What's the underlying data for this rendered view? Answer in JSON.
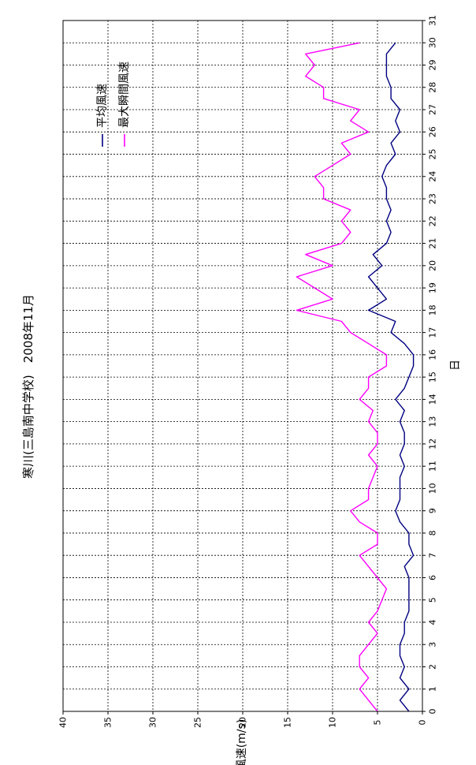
{
  "chart_data": {
    "type": "line",
    "title": "寒川(三島南中学校)　2008年11月",
    "xlabel": "日",
    "ylabel": "風速(m/s)",
    "xlim": [
      0,
      31
    ],
    "ylim": [
      0,
      40
    ],
    "x_ticks": [
      0,
      1,
      2,
      3,
      4,
      5,
      6,
      7,
      8,
      9,
      10,
      11,
      12,
      13,
      14,
      15,
      16,
      17,
      18,
      19,
      20,
      21,
      22,
      23,
      24,
      25,
      26,
      27,
      28,
      29,
      30,
      31
    ],
    "y_ticks": [
      0,
      5,
      10,
      15,
      20,
      25,
      30,
      35,
      40
    ],
    "grid": true,
    "legend_position": "top-right",
    "orientation": "rotated-90-clockwise",
    "colors": {
      "mean": "#000080",
      "gust": "#ff00ff"
    },
    "series": [
      {
        "name": "平均風速",
        "color": "#000080",
        "x": [
          0,
          0.5,
          1,
          1.5,
          2,
          2.5,
          3,
          3.5,
          4,
          4.5,
          5,
          5.5,
          6,
          6.5,
          7,
          7.5,
          8,
          8.5,
          9,
          9.5,
          10,
          10.5,
          11,
          11.5,
          12,
          12.5,
          13,
          13.5,
          14,
          14.5,
          15,
          15.5,
          16,
          16.5,
          17,
          17.5,
          18,
          18.5,
          19,
          19.5,
          20,
          20.5,
          21,
          21.5,
          22,
          22.5,
          23,
          23.5,
          24,
          24.5,
          25,
          25.5,
          26,
          26.5,
          27,
          27.5,
          28,
          28.5,
          29,
          29.5,
          30
        ],
        "values": [
          1.5,
          2.5,
          1.5,
          2.5,
          2,
          2.5,
          2.5,
          2,
          2,
          1.5,
          1.5,
          1.5,
          1.5,
          2,
          1,
          1.5,
          1.5,
          2.5,
          3,
          2.5,
          2.5,
          2.5,
          2,
          2.5,
          2,
          2,
          2.5,
          2,
          3,
          2,
          1.5,
          1,
          1,
          2,
          3.5,
          3,
          6,
          4,
          5,
          6,
          4.5,
          5.5,
          4,
          3.5,
          4,
          3.5,
          4,
          4,
          4.5,
          4,
          3,
          3.5,
          2.5,
          3,
          2.5,
          3.5,
          3.5,
          4,
          4,
          4,
          3
        ]
      },
      {
        "name": "最大瞬間風速",
        "color": "#ff00ff",
        "x": [
          0,
          0.5,
          1,
          1.5,
          2,
          2.5,
          3,
          3.5,
          4,
          4.5,
          5,
          5.5,
          6,
          6.5,
          7,
          7.5,
          8,
          8.5,
          9,
          9.5,
          10,
          10.5,
          11,
          11.5,
          12,
          12.5,
          13,
          13.5,
          14,
          14.5,
          15,
          15.5,
          16,
          16.5,
          17,
          17.5,
          18,
          18.5,
          19,
          19.5,
          20,
          20.5,
          21,
          21.5,
          22,
          22.5,
          23,
          23.5,
          24,
          24.5,
          25,
          25.5,
          26,
          26.5,
          27,
          27.5,
          28,
          28.5,
          29,
          29.5,
          30
        ],
        "values": [
          5,
          6,
          7,
          6,
          7,
          7,
          6,
          5,
          6,
          5,
          4.5,
          4,
          5,
          6,
          7,
          5,
          5,
          7,
          8,
          6,
          6,
          5.5,
          5,
          6,
          5,
          5,
          6,
          5.5,
          7,
          6,
          6,
          4,
          4,
          6,
          8,
          9,
          14,
          10,
          12,
          14,
          10,
          13,
          9,
          8,
          9,
          8,
          11,
          11,
          12,
          10,
          8,
          9,
          6,
          8,
          7,
          11,
          11,
          13,
          12,
          13,
          7
        ]
      }
    ]
  }
}
